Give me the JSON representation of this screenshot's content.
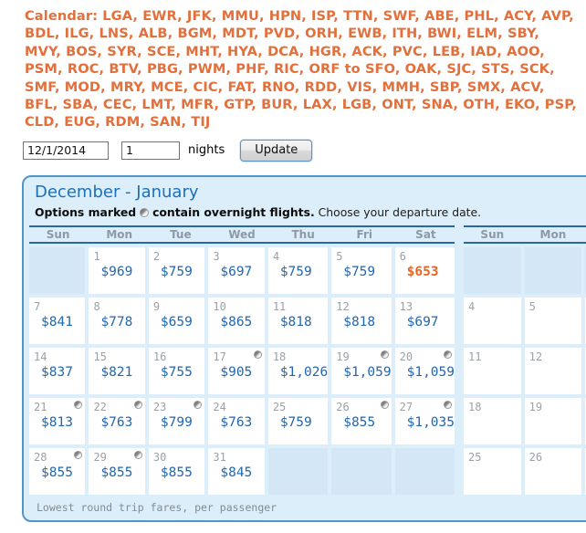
{
  "header": {
    "route_text": "Calendar: LGA, EWR, JFK, MMU, HPN, ISP, TTN, SWF, ABE, PHL, ACY, AVP, BDL, ILG, LNS, ALB, BGM, MDT, PVD, ORH, EWB, ITH, BWI, ELM, SBY, MVY, BOS, SYR, SCE, MHT, HYA, DCA, HGR, ACK, PVC, LEB, IAD, AOO, PSM, ROC, BTV, PBG, PWM, PHF, RIC, ORF to SFO, OAK, SJC, STS, SCK, SMF, MOD, MRY, MCE, CIC, FAT, RNO, RDD, VIS, MMH, SBP, SMX, ACV, BFL, SBA, CEC, LMT, MFR, GTP, BUR, LAX, LGB, ONT, SNA, OTH, EKO, PSP, CLD, EUG, RDM, SAN, TIJ"
  },
  "form": {
    "date_value": "12/1/2014",
    "nights_value": "1",
    "nights_label": "nights",
    "update_label": "Update"
  },
  "calendar": {
    "title": "December - January",
    "legend": {
      "prefix_bold": "Options marked",
      "icon": "overnight-moon-icon",
      "suffix_bold": "contain overnight flights.",
      "suffix_regular": "Choose your departure date."
    },
    "footer": "Lowest round trip fares, per passenger",
    "months": [
      {
        "day_headers": [
          "Sun",
          "Mon",
          "Tue",
          "Wed",
          "Thu",
          "Fri",
          "Sat"
        ],
        "weeks": [
          [
            {
              "empty": true
            },
            {
              "day": "1",
              "price": "$969"
            },
            {
              "day": "2",
              "price": "$759"
            },
            {
              "day": "3",
              "price": "$697"
            },
            {
              "day": "4",
              "price": "$759"
            },
            {
              "day": "5",
              "price": "$759"
            },
            {
              "day": "6",
              "price": "$653",
              "lowest": true
            }
          ],
          [
            {
              "day": "7",
              "price": "$841"
            },
            {
              "day": "8",
              "price": "$778"
            },
            {
              "day": "9",
              "price": "$659"
            },
            {
              "day": "10",
              "price": "$865"
            },
            {
              "day": "11",
              "price": "$818"
            },
            {
              "day": "12",
              "price": "$818"
            },
            {
              "day": "13",
              "price": "$697"
            }
          ],
          [
            {
              "day": "14",
              "price": "$837"
            },
            {
              "day": "15",
              "price": "$821"
            },
            {
              "day": "16",
              "price": "$755"
            },
            {
              "day": "17",
              "price": "$905",
              "overnight": true
            },
            {
              "day": "18",
              "price": "$1,026"
            },
            {
              "day": "19",
              "price": "$1,059",
              "overnight": true
            },
            {
              "day": "20",
              "price": "$1,059",
              "overnight": true
            }
          ],
          [
            {
              "day": "21",
              "price": "$813",
              "overnight": true
            },
            {
              "day": "22",
              "price": "$763",
              "overnight": true
            },
            {
              "day": "23",
              "price": "$799",
              "overnight": true
            },
            {
              "day": "24",
              "price": "$763"
            },
            {
              "day": "25",
              "price": "$759"
            },
            {
              "day": "26",
              "price": "$855",
              "overnight": true
            },
            {
              "day": "27",
              "price": "$1,035",
              "overnight": true
            }
          ],
          [
            {
              "day": "28",
              "price": "$855",
              "overnight": true
            },
            {
              "day": "29",
              "price": "$855",
              "overnight": true
            },
            {
              "day": "30",
              "price": "$855"
            },
            {
              "day": "31",
              "price": "$845"
            },
            {
              "empty": true
            },
            {
              "empty": true
            },
            {
              "empty": true
            }
          ]
        ]
      },
      {
        "day_headers": [
          "Sun",
          "Mon"
        ],
        "weeks": [
          [
            {
              "empty": true
            },
            {
              "empty": true
            },
            {
              "empty": true,
              "clipped": true
            }
          ],
          [
            {
              "day": "4"
            },
            {
              "day": "5"
            },
            {
              "clipped": true
            }
          ],
          [
            {
              "day": "11"
            },
            {
              "day": "12"
            },
            {
              "clipped": true
            }
          ],
          [
            {
              "day": "18"
            },
            {
              "day": "19"
            },
            {
              "clipped": true
            }
          ],
          [
            {
              "day": "25"
            },
            {
              "day": "26"
            },
            {
              "clipped": true
            }
          ]
        ]
      }
    ]
  },
  "colors": {
    "accent_orange": "#E2703C",
    "fare_blue": "#2166B2",
    "lowest_fare_orange": "#EC621C",
    "title_blue": "#1A70BA",
    "panel_border_blue": "#4E96CB",
    "header_line_blue": "#2A66A4",
    "panel_background": "#DCEEFA",
    "empty_cell_blue": "#D3E7F6"
  }
}
